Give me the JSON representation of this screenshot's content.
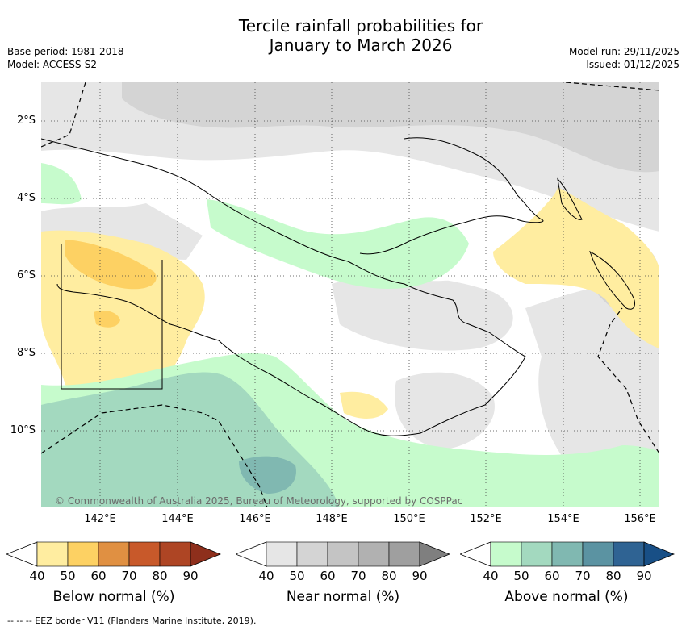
{
  "header": {
    "title_line1": "Tercile rainfall probabilities for",
    "title_line2": "January to March 2026",
    "base_period": "Base period: 1981-2018",
    "model": "Model: ACCESS-S2",
    "model_run": "Model run: 29/11/2025",
    "issued": "Issued: 01/12/2025"
  },
  "map": {
    "lat_labels": [
      "2°S",
      "4°S",
      "6°S",
      "8°S",
      "10°S"
    ],
    "lon_labels": [
      "142°E",
      "144°E",
      "146°E",
      "148°E",
      "150°E",
      "152°E",
      "154°E",
      "156°E"
    ],
    "lat_range": [
      -12,
      -1
    ],
    "lon_range": [
      140,
      156.5
    ],
    "credit": "© Commonwealth of Australia 2025, Bureau of Meteorology, supported by COSPPac"
  },
  "colorbars": [
    {
      "title": "Below normal (%)",
      "ticks": [
        "40",
        "50",
        "60",
        "70",
        "80",
        "90"
      ],
      "colors": [
        "#ffeda0",
        "#fdd163",
        "#e09042",
        "#c8592a",
        "#ae4524",
        "#8e2f1c"
      ]
    },
    {
      "title": "Near normal (%)",
      "ticks": [
        "40",
        "50",
        "60",
        "70",
        "80",
        "90"
      ],
      "colors": [
        "#e6e6e6",
        "#d4d4d4",
        "#c4c4c4",
        "#b1b1b1",
        "#9f9f9f",
        "#7f7f7f"
      ]
    },
    {
      "title": "Above normal (%)",
      "ticks": [
        "40",
        "50",
        "60",
        "70",
        "80",
        "90"
      ],
      "colors": [
        "#c6fbcc",
        "#a3d9bf",
        "#80b8b1",
        "#5b93a2",
        "#2f6393",
        "#184f86"
      ]
    }
  ],
  "footnote": "--  --  -- EEZ border V11 (Flanders Marine Institute, 2019)."
}
